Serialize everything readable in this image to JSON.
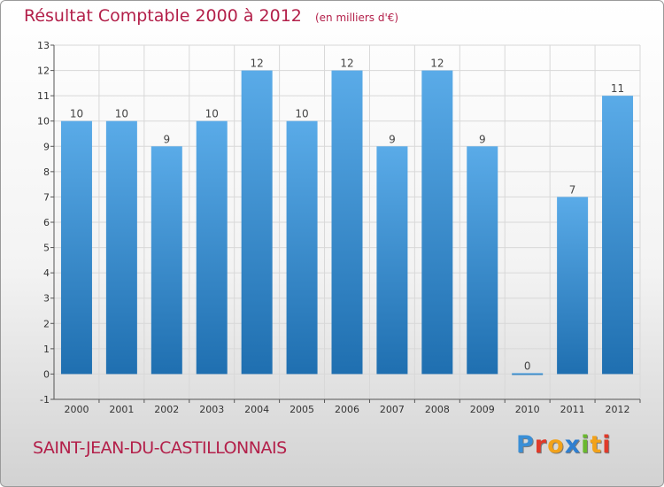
{
  "header": {
    "title": "Résultat Comptable 2000 à 2012",
    "unit": "(en milliers d'€)"
  },
  "commune_name": "SAINT-JEAN-DU-CASTILLONNAIS",
  "logo": {
    "text": "Proxiti",
    "letters": [
      {
        "char": "P",
        "color": "#3a8fd6"
      },
      {
        "char": "r",
        "color": "#e03a2a"
      },
      {
        "char": "o",
        "color": "#f2a21a"
      },
      {
        "char": "x",
        "color": "#2f7fd0"
      },
      {
        "char": "i",
        "color": "#6ab82e"
      },
      {
        "char": "t",
        "color": "#f2a21a"
      },
      {
        "char": "i",
        "color": "#e03a2a"
      }
    ]
  },
  "chart_data": {
    "type": "bar",
    "title": "Résultat Comptable 2000 à 2012",
    "subtitle": "(en milliers d'€)",
    "categories": [
      "2000",
      "2001",
      "2002",
      "2003",
      "2004",
      "2005",
      "2006",
      "2007",
      "2008",
      "2009",
      "2010",
      "2011",
      "2012"
    ],
    "values": [
      10,
      10,
      9,
      10,
      12,
      10,
      12,
      9,
      12,
      9,
      0,
      7,
      11
    ],
    "data_labels": [
      "10",
      "10",
      "9",
      "10",
      "12",
      "10",
      "12",
      "9",
      "12",
      "9",
      "0",
      "7",
      "11"
    ],
    "ylim": [
      -1,
      13
    ],
    "yticks": [
      -1,
      0,
      1,
      2,
      3,
      4,
      5,
      6,
      7,
      8,
      9,
      10,
      11,
      12,
      13
    ],
    "xlabel": "",
    "ylabel": "",
    "grid": true,
    "bar_color": "#3b8fd4",
    "bar_color_light": "#5aabe8",
    "bar_color_dark": "#1f6fb0"
  }
}
